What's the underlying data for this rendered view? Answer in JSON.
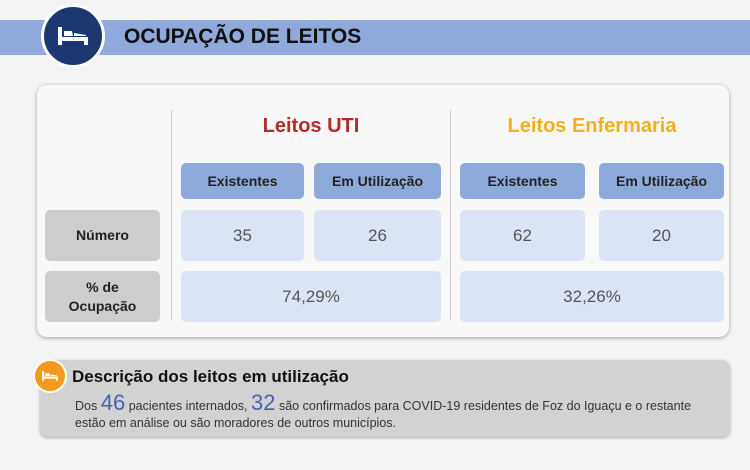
{
  "header": {
    "title": "OCUPAÇÃO DE LEITOS",
    "icon": "bed-icon",
    "color": "#8fa9dc"
  },
  "table": {
    "row_labels": {
      "numero": "Número",
      "ocupacao": "% de Ocupação"
    },
    "uti": {
      "title": "Leitos UTI",
      "color": "#b22a2a",
      "existentes_label": "Existentes",
      "em_uso_label": "Em Utilização",
      "existentes": "35",
      "em_uso": "26",
      "ocupacao": "74,29%"
    },
    "enfermaria": {
      "title": "Leitos Enfermaria",
      "color": "#f2b01e",
      "existentes_label": "Existentes",
      "em_uso_label": "Em Utilização",
      "existentes": "62",
      "em_uso": "20",
      "ocupacao": "32,26%"
    }
  },
  "descricao": {
    "title": "Descrição dos leitos em utilização",
    "icon": "bed-icon",
    "p1": "Dos",
    "n1": "46",
    "p2": "pacientes internados,",
    "n2": "32",
    "p3": "são confirmados para COVID-19 residentes de Foz do Iguaçu e o restante estão em análise ou são moradores de outros municípios."
  }
}
